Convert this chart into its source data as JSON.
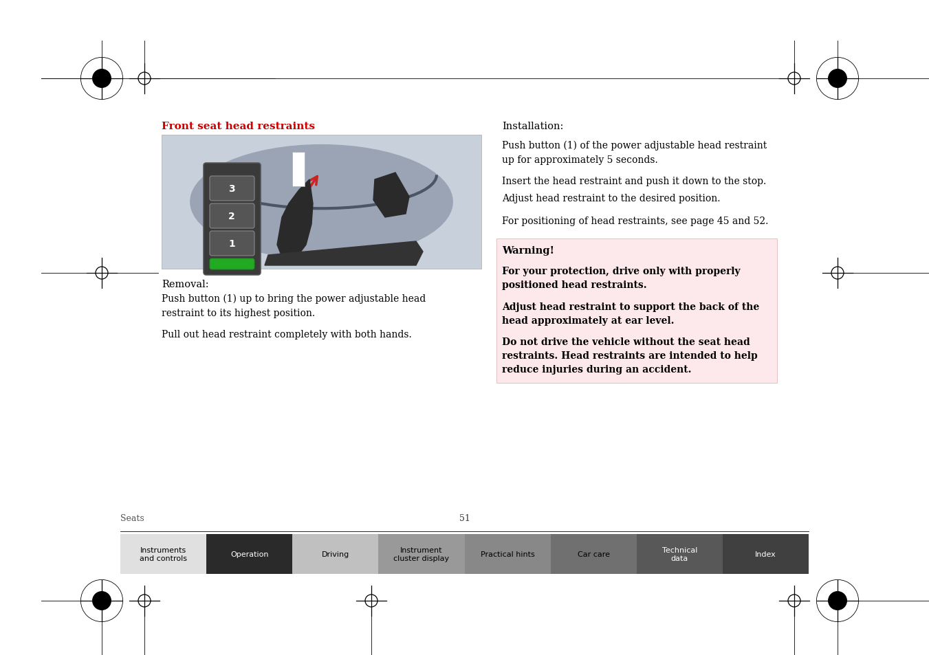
{
  "page_bg": "#ffffff",
  "warning_bg": "#fde8ec",
  "title_color": "#cc0000",
  "title_text": "Front seat head restraints",
  "removal_heading": "Removal:",
  "removal_para1": "Push button (1) up to bring the power adjustable head\nrestraint to its highest position.",
  "removal_para2": "Pull out head restraint completely with both hands.",
  "installation_heading": "Installation:",
  "installation_para1": "Push button (1) of the power adjustable head restraint\nup for approximately 5 seconds.",
  "installation_para2": "Insert the head restraint and push it down to the stop.",
  "installation_para3": "Adjust head restraint to the desired position.",
  "installation_para4": "For positioning of head restraints, see page 45 and 52.",
  "warning_title": "Warning!",
  "warning_para1": "For your protection, drive only with properly\npositioned head restraints.",
  "warning_para2": "Adjust head restraint to support the back of the\nhead approximately at ear level.",
  "warning_para3": "Do not drive the vehicle without the seat head\nrestraints. Head restraints are intended to help\nreduce injuries during an accident.",
  "page_label": "Seats",
  "page_number": "51",
  "nav_tabs": [
    {
      "label": "Instruments\nand controls",
      "color": "#e0e0e0",
      "text_color": "#000000"
    },
    {
      "label": "Operation",
      "color": "#2a2a2a",
      "text_color": "#ffffff"
    },
    {
      "label": "Driving",
      "color": "#c0c0c0",
      "text_color": "#000000"
    },
    {
      "label": "Instrument\ncluster display",
      "color": "#999999",
      "text_color": "#000000"
    },
    {
      "label": "Practical hints",
      "color": "#888888",
      "text_color": "#000000"
    },
    {
      "label": "Car care",
      "color": "#707070",
      "text_color": "#000000"
    },
    {
      "label": "Technical\ndata",
      "color": "#585858",
      "text_color": "#ffffff"
    },
    {
      "label": "Index",
      "color": "#404040",
      "text_color": "#ffffff"
    }
  ],
  "img_bg": "#b8c0cc",
  "img_bg2": "#c8d0dc",
  "seat_dark": "#2a2a2a",
  "seat_mid": "#444444",
  "seat_light": "#888888",
  "btn_green": "#22aa22",
  "btn_dark_bg": "#3a3a3a",
  "arrow_red": "#cc2222"
}
